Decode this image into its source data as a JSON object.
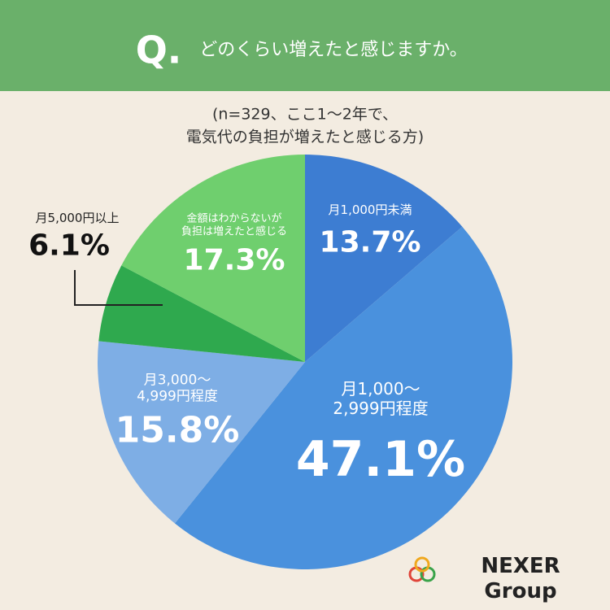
{
  "chart_data": {
    "type": "pie",
    "question_marker": "Q.",
    "title": "どのくらい増えたと感じますか。",
    "subtitle": "(n=329、ここ1〜2年で、\n電気代の負担が増えたと感じる方)",
    "categories": [
      "月1,000円未満",
      "月1,000〜\n2,999円程度",
      "月3,000〜\n4,999円程度",
      "月5,000円以上",
      "金額はわからないが\n負担は増えたと感じる"
    ],
    "values": [
      13.7,
      47.1,
      15.8,
      6.1,
      17.3
    ],
    "value_labels": [
      "13.7%",
      "47.1%",
      "15.8%",
      "6.1%",
      "17.3%"
    ],
    "colors": [
      "#3d7dd2",
      "#4a91dd",
      "#7eaee5",
      "#2fa94e",
      "#6fcf6e"
    ],
    "logo": "NEXER Group"
  }
}
